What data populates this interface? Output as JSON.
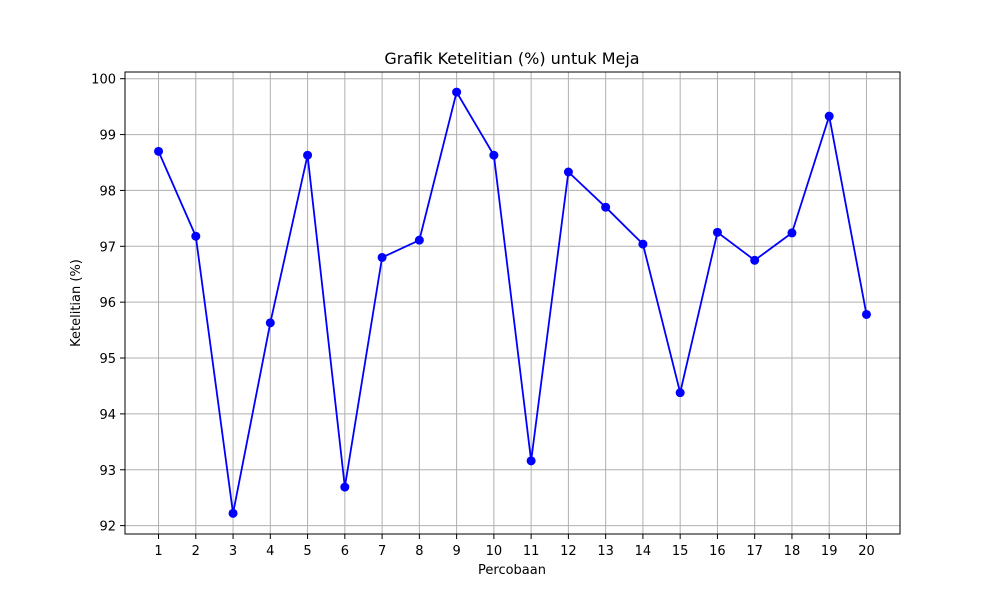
{
  "chart_data": {
    "type": "line",
    "title": "Grafik Ketelitian (%) untuk Meja",
    "xlabel": "Percobaan",
    "ylabel": "Ketelitian (%)",
    "x": [
      1,
      2,
      3,
      4,
      5,
      6,
      7,
      8,
      9,
      10,
      11,
      12,
      13,
      14,
      15,
      16,
      17,
      18,
      19,
      20
    ],
    "x_tick_labels": [
      "1",
      "2",
      "3",
      "4",
      "5",
      "6",
      "7",
      "8",
      "9",
      "10",
      "11",
      "12",
      "13",
      "14",
      "15",
      "16",
      "17",
      "18",
      "19",
      "20"
    ],
    "y_ticks": [
      92,
      93,
      94,
      95,
      96,
      97,
      98,
      99,
      100
    ],
    "y_tick_labels": [
      "92",
      "93",
      "94",
      "95",
      "96",
      "97",
      "98",
      "99",
      "100"
    ],
    "series": [
      {
        "values": [
          98.7,
          97.18,
          92.22,
          95.63,
          98.63,
          92.69,
          96.8,
          97.11,
          99.76,
          98.63,
          93.16,
          98.33,
          97.7,
          97.04,
          94.38,
          97.25,
          96.75,
          97.24,
          99.33,
          95.78
        ],
        "color": "#0000ff",
        "marker": "circle"
      }
    ],
    "xlim": [
      0.1,
      20.9
    ],
    "ylim": [
      91.85,
      100.12
    ],
    "grid": true,
    "grid_color": "#b0b0b0"
  }
}
